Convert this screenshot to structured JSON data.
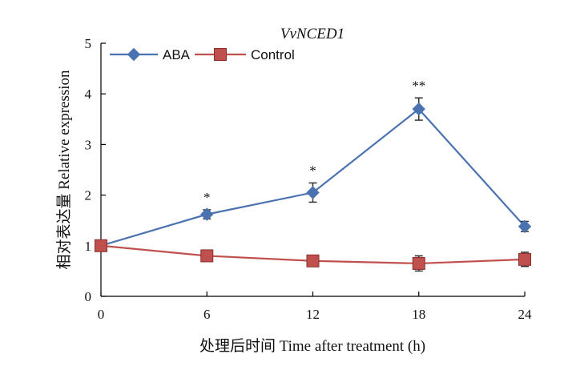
{
  "chart_data": {
    "type": "line",
    "title": "VvNCED1",
    "xlabel": "处理后时间 Time after treatment  (h)",
    "ylabel": "相对表达量 Relative  expression",
    "x": [
      0,
      6,
      12,
      18,
      24
    ],
    "x_tick_labels": [
      "0",
      "6",
      "12",
      "18",
      "24"
    ],
    "ylim": [
      0,
      5
    ],
    "y_ticks": [
      0,
      1,
      2,
      3,
      4,
      5
    ],
    "y_tick_labels": [
      "0",
      "1",
      "2",
      "3",
      "4",
      "5"
    ],
    "grid": false,
    "legend_position": "top-left",
    "series": [
      {
        "name": "ABA",
        "marker": "diamond",
        "color": "#4a72b0",
        "values": [
          1.0,
          1.62,
          2.05,
          3.7,
          1.38
        ],
        "errors": [
          0.0,
          0.09,
          0.19,
          0.22,
          0.1
        ],
        "significance": [
          "",
          "*",
          "*",
          "**",
          ""
        ]
      },
      {
        "name": "Control",
        "marker": "square",
        "color": "#c0504d",
        "values": [
          1.0,
          0.8,
          0.7,
          0.65,
          0.73
        ],
        "errors": [
          0.0,
          0.0,
          0.1,
          0.15,
          0.14
        ]
      }
    ]
  }
}
